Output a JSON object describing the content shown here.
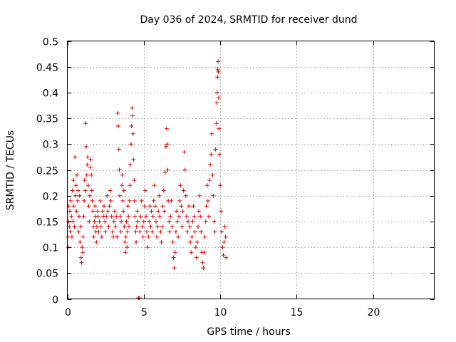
{
  "chart_data": {
    "type": "scatter",
    "title": "Day 036 of 2024, SRMTID for receiver dund",
    "xlabel": "GPS time / hours",
    "ylabel": "SRMTID / TECUs",
    "xlim": [
      0,
      24
    ],
    "ylim": [
      0,
      0.5
    ],
    "x_ticks": [
      0,
      5,
      10,
      15,
      20
    ],
    "x_tick_labels": [
      "0",
      "5",
      "10",
      "15",
      "20"
    ],
    "y_ticks": [
      0,
      0.05,
      0.1,
      0.15,
      0.2,
      0.25,
      0.3,
      0.35,
      0.4,
      0.45,
      0.5
    ],
    "y_tick_labels": [
      "0",
      "0.05",
      "0.1",
      "0.15",
      "0.2",
      "0.25",
      "0.3",
      "0.35",
      "0.4",
      "0.45",
      "0.5"
    ],
    "grid": true,
    "marker": "+",
    "color": "#e00000",
    "series": [
      {
        "name": "SRMTID",
        "points": [
          [
            0.02,
            0.12
          ],
          [
            0.05,
            0.1
          ],
          [
            0.08,
            0.15
          ],
          [
            0.1,
            0.18
          ],
          [
            0.13,
            0.14
          ],
          [
            0.16,
            0.17
          ],
          [
            0.2,
            0.13
          ],
          [
            0.23,
            0.19
          ],
          [
            0.27,
            0.16
          ],
          [
            0.3,
            0.12
          ],
          [
            0.33,
            0.21
          ],
          [
            0.37,
            0.15
          ],
          [
            0.4,
            0.23
          ],
          [
            0.43,
            0.18
          ],
          [
            0.47,
            0.14
          ],
          [
            0.5,
            0.275
          ],
          [
            0.53,
            0.2
          ],
          [
            0.57,
            0.22
          ],
          [
            0.6,
            0.17
          ],
          [
            0.63,
            0.24
          ],
          [
            0.67,
            0.19
          ],
          [
            0.7,
            0.21
          ],
          [
            0.73,
            0.13
          ],
          [
            0.77,
            0.16
          ],
          [
            0.8,
            0.2
          ],
          [
            0.83,
            0.11
          ],
          [
            0.87,
            0.14
          ],
          [
            0.9,
            0.08
          ],
          [
            0.93,
            0.07
          ],
          [
            0.97,
            0.1
          ],
          [
            1.0,
            0.09
          ],
          [
            1.03,
            0.12
          ],
          [
            1.07,
            0.16
          ],
          [
            1.1,
            0.19
          ],
          [
            1.13,
            0.23
          ],
          [
            1.17,
            0.21
          ],
          [
            1.2,
            0.34
          ],
          [
            1.23,
            0.295
          ],
          [
            1.27,
            0.24
          ],
          [
            1.3,
            0.26
          ],
          [
            1.33,
            0.275
          ],
          [
            1.37,
            0.22
          ],
          [
            1.4,
            0.18
          ],
          [
            1.43,
            0.15
          ],
          [
            1.47,
            0.2
          ],
          [
            1.5,
            0.255
          ],
          [
            1.53,
            0.27
          ],
          [
            1.57,
            0.24
          ],
          [
            1.6,
            0.21
          ],
          [
            1.63,
            0.19
          ],
          [
            1.67,
            0.17
          ],
          [
            1.7,
            0.14
          ],
          [
            1.73,
            0.12
          ],
          [
            1.77,
            0.15
          ],
          [
            1.8,
            0.18
          ],
          [
            1.83,
            0.16
          ],
          [
            1.87,
            0.13
          ],
          [
            1.9,
            0.11
          ],
          [
            1.93,
            0.14
          ],
          [
            1.97,
            0.17
          ],
          [
            2.0,
            0.16
          ],
          [
            2.05,
            0.13
          ],
          [
            2.1,
            0.15
          ],
          [
            2.15,
            0.19
          ],
          [
            2.2,
            0.14
          ],
          [
            2.25,
            0.12
          ],
          [
            2.3,
            0.17
          ],
          [
            2.35,
            0.16
          ],
          [
            2.4,
            0.18
          ],
          [
            2.45,
            0.15
          ],
          [
            2.5,
            0.13
          ],
          [
            2.55,
            0.16
          ],
          [
            2.6,
            0.2
          ],
          [
            2.65,
            0.17
          ],
          [
            2.7,
            0.14
          ],
          [
            2.75,
            0.18
          ],
          [
            2.8,
            0.21
          ],
          [
            2.85,
            0.19
          ],
          [
            2.9,
            0.16
          ],
          [
            2.95,
            0.13
          ],
          [
            3.0,
            0.12
          ],
          [
            3.05,
            0.15
          ],
          [
            3.1,
            0.17
          ],
          [
            3.15,
            0.14
          ],
          [
            3.2,
            0.16
          ],
          [
            3.25,
            0.12
          ],
          [
            3.3,
            0.36
          ],
          [
            3.33,
            0.335
          ],
          [
            3.37,
            0.29
          ],
          [
            3.4,
            0.25
          ],
          [
            3.43,
            0.2
          ],
          [
            3.47,
            0.16
          ],
          [
            3.5,
            0.13
          ],
          [
            3.53,
            0.15
          ],
          [
            3.57,
            0.22
          ],
          [
            3.6,
            0.24
          ],
          [
            3.63,
            0.19
          ],
          [
            3.67,
            0.17
          ],
          [
            3.7,
            0.21
          ],
          [
            3.73,
            0.14
          ],
          [
            3.77,
            0.11
          ],
          [
            3.8,
            0.09
          ],
          [
            3.83,
            0.12
          ],
          [
            3.87,
            0.15
          ],
          [
            3.9,
            0.1
          ],
          [
            3.93,
            0.13
          ],
          [
            3.97,
            0.18
          ],
          [
            4.0,
            0.16
          ],
          [
            4.03,
            0.14
          ],
          [
            4.07,
            0.19
          ],
          [
            4.1,
            0.22
          ],
          [
            4.13,
            0.26
          ],
          [
            4.17,
            0.3
          ],
          [
            4.2,
            0.335
          ],
          [
            4.23,
            0.37
          ],
          [
            4.27,
            0.355
          ],
          [
            4.3,
            0.32
          ],
          [
            4.33,
            0.27
          ],
          [
            4.37,
            0.23
          ],
          [
            4.4,
            0.19
          ],
          [
            4.43,
            0.16
          ],
          [
            4.47,
            0.13
          ],
          [
            4.5,
            0.11
          ],
          [
            4.53,
            0.14
          ],
          [
            4.57,
            0.17
          ],
          [
            4.6,
            0.15
          ],
          [
            4.65,
            0.002
          ],
          [
            4.7,
            0.002
          ],
          [
            4.75,
            0.13
          ],
          [
            4.8,
            0.16
          ],
          [
            4.85,
            0.19
          ],
          [
            4.9,
            0.14
          ],
          [
            4.95,
            0.12
          ],
          [
            5.0,
            0.15
          ],
          [
            5.05,
            0.18
          ],
          [
            5.1,
            0.21
          ],
          [
            5.15,
            0.16
          ],
          [
            5.2,
            0.13
          ],
          [
            5.25,
            0.1
          ],
          [
            5.3,
            0.12
          ],
          [
            5.35,
            0.15
          ],
          [
            5.4,
            0.18
          ],
          [
            5.45,
            0.14
          ],
          [
            5.5,
            0.17
          ],
          [
            5.55,
            0.13
          ],
          [
            5.6,
            0.16
          ],
          [
            5.65,
            0.19
          ],
          [
            5.7,
            0.22
          ],
          [
            5.75,
            0.18
          ],
          [
            5.8,
            0.15
          ],
          [
            5.85,
            0.12
          ],
          [
            5.9,
            0.14
          ],
          [
            5.95,
            0.17
          ],
          [
            6.0,
            0.2
          ],
          [
            6.05,
            0.16
          ],
          [
            6.1,
            0.13
          ],
          [
            6.15,
            0.11
          ],
          [
            6.2,
            0.14
          ],
          [
            6.25,
            0.18
          ],
          [
            6.3,
            0.21
          ],
          [
            6.35,
            0.17
          ],
          [
            6.4,
            0.245
          ],
          [
            6.45,
            0.295
          ],
          [
            6.5,
            0.33
          ],
          [
            6.53,
            0.3
          ],
          [
            6.57,
            0.25
          ],
          [
            6.6,
            0.19
          ],
          [
            6.65,
            0.15
          ],
          [
            6.7,
            0.13
          ],
          [
            6.75,
            0.16
          ],
          [
            6.8,
            0.19
          ],
          [
            6.85,
            0.14
          ],
          [
            6.9,
            0.11
          ],
          [
            6.95,
            0.08
          ],
          [
            7.0,
            0.06
          ],
          [
            7.05,
            0.09
          ],
          [
            7.1,
            0.13
          ],
          [
            7.15,
            0.17
          ],
          [
            7.2,
            0.15
          ],
          [
            7.25,
            0.12
          ],
          [
            7.3,
            0.16
          ],
          [
            7.35,
            0.19
          ],
          [
            7.4,
            0.22
          ],
          [
            7.45,
            0.18
          ],
          [
            7.5,
            0.14
          ],
          [
            7.55,
            0.17
          ],
          [
            7.6,
            0.21
          ],
          [
            7.65,
            0.285
          ],
          [
            7.7,
            0.25
          ],
          [
            7.75,
            0.2
          ],
          [
            7.8,
            0.16
          ],
          [
            7.85,
            0.13
          ],
          [
            7.9,
            0.15
          ],
          [
            7.95,
            0.18
          ],
          [
            8.0,
            0.14
          ],
          [
            8.05,
            0.11
          ],
          [
            8.1,
            0.09
          ],
          [
            8.15,
            0.12
          ],
          [
            8.2,
            0.15
          ],
          [
            8.25,
            0.18
          ],
          [
            8.3,
            0.16
          ],
          [
            8.35,
            0.13
          ],
          [
            8.4,
            0.1
          ],
          [
            8.45,
            0.08
          ],
          [
            8.5,
            0.11
          ],
          [
            8.55,
            0.14
          ],
          [
            8.6,
            0.17
          ],
          [
            8.65,
            0.2
          ],
          [
            8.7,
            0.16
          ],
          [
            8.75,
            0.13
          ],
          [
            8.8,
            0.09
          ],
          [
            8.85,
            0.07
          ],
          [
            8.9,
            0.06
          ],
          [
            8.95,
            0.09
          ],
          [
            9.0,
            0.12
          ],
          [
            9.05,
            0.15
          ],
          [
            9.1,
            0.18
          ],
          [
            9.15,
            0.22
          ],
          [
            9.2,
            0.19
          ],
          [
            9.25,
            0.16
          ],
          [
            9.3,
            0.23
          ],
          [
            9.35,
            0.26
          ],
          [
            9.4,
            0.28
          ],
          [
            9.45,
            0.32
          ],
          [
            9.5,
            0.24
          ],
          [
            9.55,
            0.2
          ],
          [
            9.6,
            0.15
          ],
          [
            9.65,
            0.13
          ],
          [
            9.7,
            0.29
          ],
          [
            9.75,
            0.34
          ],
          [
            9.78,
            0.38
          ],
          [
            9.8,
            0.4
          ],
          [
            9.82,
            0.43
          ],
          [
            9.84,
            0.445
          ],
          [
            9.86,
            0.46
          ],
          [
            9.88,
            0.44
          ],
          [
            9.9,
            0.39
          ],
          [
            9.92,
            0.33
          ],
          [
            9.95,
            0.28
          ],
          [
            10.0,
            0.22
          ],
          [
            10.05,
            0.17
          ],
          [
            10.1,
            0.13
          ],
          [
            10.15,
            0.1
          ],
          [
            10.2,
            0.085
          ],
          [
            10.25,
            0.11
          ],
          [
            10.3,
            0.14
          ],
          [
            10.35,
            0.12
          ],
          [
            10.38,
            0.08
          ]
        ]
      }
    ]
  }
}
